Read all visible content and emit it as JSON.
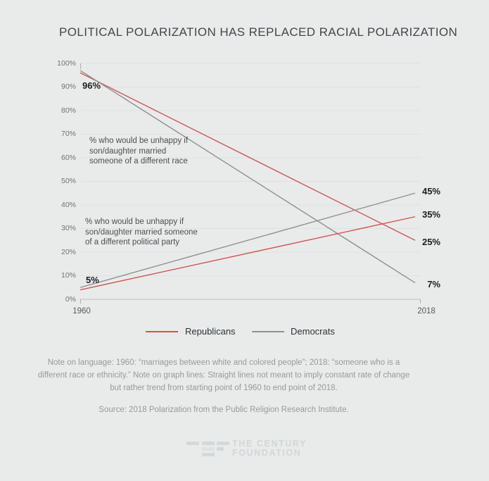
{
  "page": {
    "title": "POLITICAL POLARIZATION HAS REPLACED RACIAL POLARIZATION"
  },
  "chart_data": {
    "type": "line",
    "title": "POLITICAL POLARIZATION HAS REPLACED RACIAL POLARIZATION",
    "x": [
      1960,
      2018
    ],
    "x_tick_labels": [
      "1960",
      "2018"
    ],
    "ylim": [
      0,
      100
    ],
    "y_ticks": [
      100,
      90,
      80,
      70,
      60,
      50,
      40,
      30,
      20,
      10,
      0
    ],
    "y_tick_labels": [
      "100%",
      "90%",
      "80%",
      "70%",
      "60%",
      "50%",
      "40%",
      "30%",
      "20%",
      "10%",
      "0%"
    ],
    "grid": true,
    "legend_position": "bottom",
    "series": [
      {
        "id": "republicans-race",
        "group": "Republicans",
        "question": "% who would be unhappy if son/daughter married someone of a different race",
        "color": "#d0564a",
        "values": [
          96,
          25
        ],
        "end_label": "25%"
      },
      {
        "id": "democrats-race",
        "group": "Democrats",
        "question": "% who would be unhappy if son/daughter married someone of a different race",
        "color": "#8e9092",
        "values": [
          97,
          7
        ],
        "end_label": "7%"
      },
      {
        "id": "republicans-party",
        "group": "Republicans",
        "question": "% who would be unhappy if son/daughter married someone of a different political party",
        "color": "#d0564a",
        "values": [
          4,
          35
        ],
        "end_label": "35%"
      },
      {
        "id": "democrats-party",
        "group": "Democrats",
        "question": "% who would be unhappy if son/daughter married someone of a different political party",
        "color": "#8e9092",
        "values": [
          5,
          45
        ],
        "end_label": "45%"
      }
    ],
    "start_labels": {
      "race": "96%",
      "party": "5%"
    },
    "annotations": {
      "race": {
        "lines": [
          "% who would be unhappy if",
          "son/daughter married",
          "someone of a different race"
        ]
      },
      "party": {
        "lines": [
          "% who would be unhappy if",
          "son/daughter married someone",
          "of a different political party"
        ]
      }
    },
    "colors": {
      "grid": "#dee1e1",
      "axis": "#bcc0c0",
      "tick": "#aab0b0"
    }
  },
  "legend": {
    "items": [
      {
        "label": "Republicans",
        "color": "#d0564a"
      },
      {
        "label": "Democrats",
        "color": "#8e9092"
      }
    ]
  },
  "notes": {
    "lines": [
      "Note on language: 1960: “marriages between white and colored people”; 2018: “someone who is a",
      "different race or ethnicity.” Note on graph lines: Straight lines not meant to imply constant rate of change",
      "but rather trend from starting point of 1960 to end point of 2018."
    ],
    "source": "Source: 2018 Polarization from the Public Religion Research Institute."
  },
  "footer": {
    "org_line1": "THE CENTURY",
    "org_line2": "FOUNDATION"
  }
}
